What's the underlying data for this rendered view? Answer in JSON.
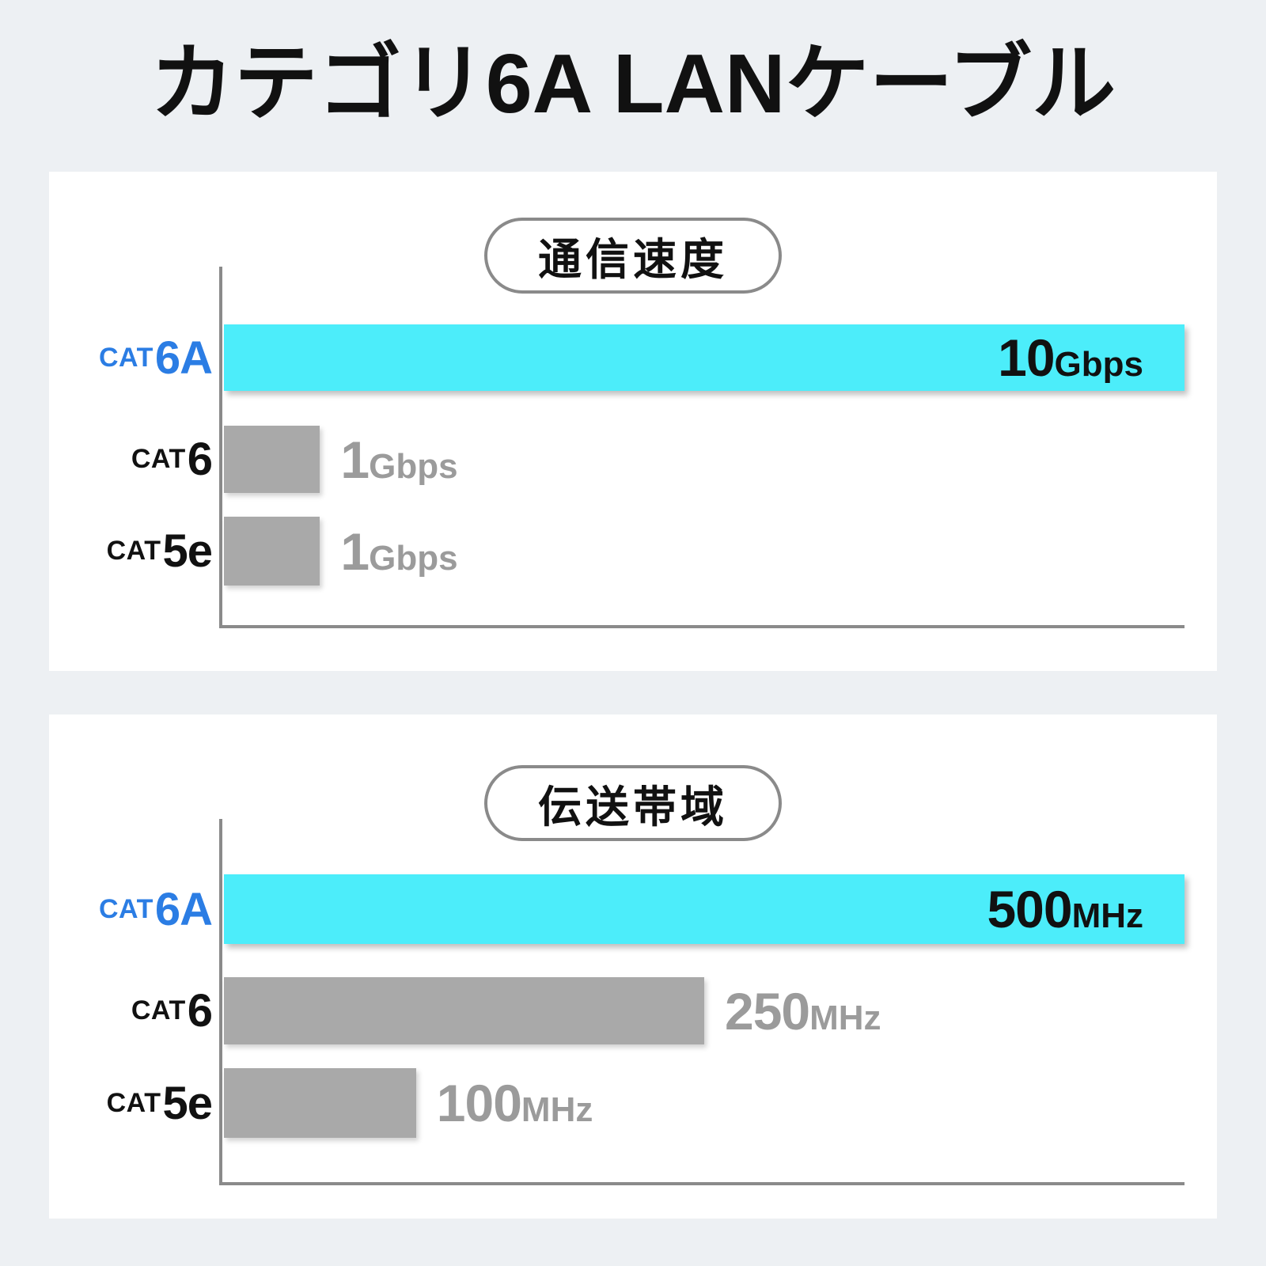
{
  "page": {
    "title": "カテゴリ6A LANケーブル"
  },
  "colors": {
    "page_bg": "#edf0f3",
    "card_bg": "#ffffff",
    "highlight_bar": "#4cedfa",
    "gray_bar": "#a9a9a9",
    "gray_text": "#9b9b9b",
    "blue_label": "#2b7de4",
    "black_text": "#111111",
    "axis_gray": "#8a8a8a"
  },
  "charts": [
    {
      "title": "通信速度",
      "rows": [
        {
          "cat": "CAT",
          "num": "6A",
          "value": "10",
          "unit": "Gbps"
        },
        {
          "cat": "CAT",
          "num": "6",
          "value": "1",
          "unit": "Gbps"
        },
        {
          "cat": "CAT",
          "num": "5e",
          "value": "1",
          "unit": "Gbps"
        }
      ]
    },
    {
      "title": "伝送帯域",
      "rows": [
        {
          "cat": "CAT",
          "num": "6A",
          "value": "500",
          "unit": "MHz"
        },
        {
          "cat": "CAT",
          "num": "6",
          "value": "250",
          "unit": "MHz"
        },
        {
          "cat": "CAT",
          "num": "5e",
          "value": "100",
          "unit": "MHz"
        }
      ]
    }
  ],
  "chart_data": [
    {
      "type": "bar",
      "orientation": "horizontal",
      "title": "通信速度",
      "categories": [
        "CAT6A",
        "CAT6",
        "CAT5e"
      ],
      "values": [
        10,
        1,
        1
      ],
      "unit": "Gbps",
      "data_labels": [
        "10Gbps",
        "1Gbps",
        "1Gbps"
      ],
      "highlight_index": 0,
      "xlim": [
        0,
        10
      ],
      "grid": false,
      "legend": false
    },
    {
      "type": "bar",
      "orientation": "horizontal",
      "title": "伝送帯域",
      "categories": [
        "CAT6A",
        "CAT6",
        "CAT5e"
      ],
      "values": [
        500,
        250,
        100
      ],
      "unit": "MHz",
      "data_labels": [
        "500MHz",
        "250MHz",
        "100MHz"
      ],
      "highlight_index": 0,
      "xlim": [
        0,
        500
      ],
      "grid": false,
      "legend": false
    }
  ]
}
